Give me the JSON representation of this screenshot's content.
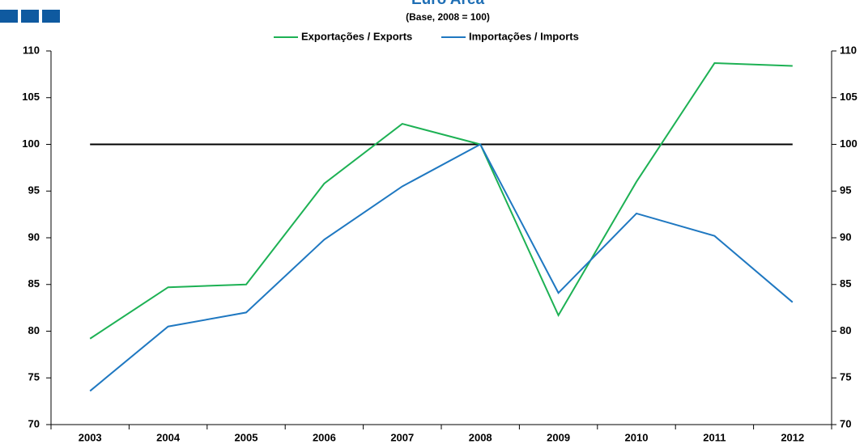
{
  "chart_data": {
    "type": "line",
    "title": "Euro Area",
    "subtitle": "(Base, 2008 = 100)",
    "categories": [
      "2003",
      "2004",
      "2005",
      "2006",
      "2007",
      "2008",
      "2009",
      "2010",
      "2011",
      "2012"
    ],
    "series": [
      {
        "name": "Exportações / Exports",
        "color": "#1db154",
        "values": [
          79.2,
          84.7,
          85.0,
          95.8,
          102.2,
          100,
          81.7,
          96.0,
          108.7,
          108.4
        ]
      },
      {
        "name": "Importações / Imports",
        "color": "#1f78c1",
        "values": [
          73.6,
          80.5,
          82.0,
          89.8,
          95.5,
          100,
          84.1,
          92.6,
          90.2,
          83.1
        ]
      }
    ],
    "baseline": 100,
    "ylim": [
      70,
      110
    ],
    "yticks": [
      70,
      75,
      80,
      85,
      90,
      95,
      100,
      105,
      110
    ],
    "y2lim": [
      70,
      110
    ],
    "y2ticks": [
      70,
      75,
      80,
      85,
      90,
      95,
      100,
      105,
      110
    ],
    "legend": "top"
  }
}
